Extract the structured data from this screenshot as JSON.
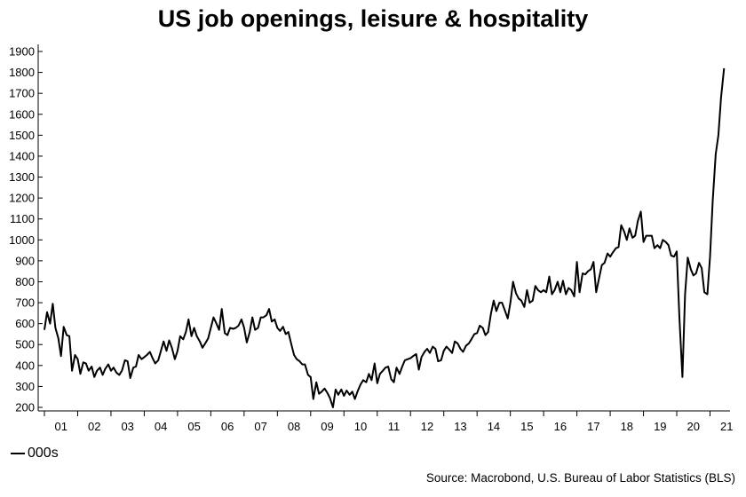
{
  "chart_data": {
    "type": "line",
    "title": "US job openings, leisure & hospitality",
    "ylim": [
      200,
      1900
    ],
    "yticks": [
      200,
      300,
      400,
      500,
      600,
      700,
      800,
      900,
      1000,
      1100,
      1200,
      1300,
      1400,
      1500,
      1600,
      1700,
      1800,
      1900
    ],
    "xlim": [
      2001,
      2021.6
    ],
    "xtick_labels": [
      "01",
      "02",
      "03",
      "04",
      "05",
      "06",
      "07",
      "08",
      "09",
      "10",
      "11",
      "12",
      "13",
      "14",
      "15",
      "16",
      "17",
      "18",
      "19",
      "20",
      "21"
    ],
    "grid": false,
    "legend": {
      "position": "bottom-left",
      "entries": [
        "000s"
      ]
    },
    "source": "Source: Macrobond, U.S. Bureau of Labor Statistics (BLS)",
    "series": [
      {
        "name": "000s",
        "color": "#000000",
        "points": [
          [
            2001.0,
            570
          ],
          [
            2001.08,
            655
          ],
          [
            2001.17,
            600
          ],
          [
            2001.25,
            695
          ],
          [
            2001.33,
            580
          ],
          [
            2001.42,
            530
          ],
          [
            2001.5,
            445
          ],
          [
            2001.58,
            585
          ],
          [
            2001.67,
            545
          ],
          [
            2001.75,
            540
          ],
          [
            2001.83,
            375
          ],
          [
            2001.92,
            450
          ],
          [
            2002.0,
            430
          ],
          [
            2002.08,
            360
          ],
          [
            2002.17,
            415
          ],
          [
            2002.25,
            410
          ],
          [
            2002.33,
            375
          ],
          [
            2002.42,
            395
          ],
          [
            2002.5,
            345
          ],
          [
            2002.58,
            375
          ],
          [
            2002.67,
            390
          ],
          [
            2002.75,
            355
          ],
          [
            2002.83,
            385
          ],
          [
            2002.92,
            405
          ],
          [
            2003.0,
            375
          ],
          [
            2003.08,
            390
          ],
          [
            2003.17,
            365
          ],
          [
            2003.25,
            355
          ],
          [
            2003.33,
            375
          ],
          [
            2003.42,
            425
          ],
          [
            2003.5,
            420
          ],
          [
            2003.58,
            340
          ],
          [
            2003.67,
            390
          ],
          [
            2003.75,
            395
          ],
          [
            2003.83,
            450
          ],
          [
            2003.92,
            430
          ],
          [
            2004.0,
            440
          ],
          [
            2004.08,
            450
          ],
          [
            2004.17,
            465
          ],
          [
            2004.25,
            435
          ],
          [
            2004.33,
            410
          ],
          [
            2004.42,
            425
          ],
          [
            2004.5,
            470
          ],
          [
            2004.58,
            515
          ],
          [
            2004.67,
            470
          ],
          [
            2004.75,
            520
          ],
          [
            2004.83,
            485
          ],
          [
            2004.92,
            430
          ],
          [
            2005.0,
            470
          ],
          [
            2005.08,
            540
          ],
          [
            2005.17,
            525
          ],
          [
            2005.25,
            560
          ],
          [
            2005.33,
            620
          ],
          [
            2005.42,
            540
          ],
          [
            2005.5,
            580
          ],
          [
            2005.58,
            540
          ],
          [
            2005.67,
            515
          ],
          [
            2005.75,
            485
          ],
          [
            2005.83,
            505
          ],
          [
            2005.92,
            530
          ],
          [
            2006.0,
            580
          ],
          [
            2006.08,
            630
          ],
          [
            2006.17,
            600
          ],
          [
            2006.25,
            570
          ],
          [
            2006.33,
            670
          ],
          [
            2006.42,
            555
          ],
          [
            2006.5,
            545
          ],
          [
            2006.58,
            580
          ],
          [
            2006.67,
            575
          ],
          [
            2006.75,
            580
          ],
          [
            2006.83,
            590
          ],
          [
            2006.92,
            620
          ],
          [
            2007.0,
            580
          ],
          [
            2007.08,
            510
          ],
          [
            2007.17,
            560
          ],
          [
            2007.25,
            630
          ],
          [
            2007.33,
            570
          ],
          [
            2007.42,
            580
          ],
          [
            2007.5,
            630
          ],
          [
            2007.58,
            630
          ],
          [
            2007.67,
            640
          ],
          [
            2007.75,
            670
          ],
          [
            2007.83,
            610
          ],
          [
            2007.92,
            620
          ],
          [
            2008.0,
            580
          ],
          [
            2008.08,
            565
          ],
          [
            2008.17,
            585
          ],
          [
            2008.25,
            550
          ],
          [
            2008.33,
            560
          ],
          [
            2008.42,
            500
          ],
          [
            2008.5,
            450
          ],
          [
            2008.58,
            430
          ],
          [
            2008.67,
            420
          ],
          [
            2008.75,
            405
          ],
          [
            2008.83,
            405
          ],
          [
            2008.92,
            355
          ],
          [
            2009.0,
            345
          ],
          [
            2009.08,
            240
          ],
          [
            2009.17,
            320
          ],
          [
            2009.25,
            265
          ],
          [
            2009.33,
            275
          ],
          [
            2009.42,
            290
          ],
          [
            2009.5,
            270
          ],
          [
            2009.58,
            245
          ],
          [
            2009.67,
            200
          ],
          [
            2009.75,
            285
          ],
          [
            2009.83,
            260
          ],
          [
            2009.92,
            285
          ],
          [
            2010.0,
            255
          ],
          [
            2010.08,
            280
          ],
          [
            2010.17,
            260
          ],
          [
            2010.25,
            275
          ],
          [
            2010.33,
            240
          ],
          [
            2010.42,
            280
          ],
          [
            2010.5,
            310
          ],
          [
            2010.58,
            330
          ],
          [
            2010.67,
            320
          ],
          [
            2010.75,
            360
          ],
          [
            2010.83,
            330
          ],
          [
            2010.92,
            410
          ],
          [
            2011.0,
            315
          ],
          [
            2011.08,
            360
          ],
          [
            2011.17,
            375
          ],
          [
            2011.25,
            390
          ],
          [
            2011.33,
            395
          ],
          [
            2011.42,
            335
          ],
          [
            2011.5,
            320
          ],
          [
            2011.58,
            390
          ],
          [
            2011.67,
            360
          ],
          [
            2011.75,
            395
          ],
          [
            2011.83,
            425
          ],
          [
            2011.92,
            430
          ],
          [
            2012.0,
            435
          ],
          [
            2012.08,
            445
          ],
          [
            2012.17,
            455
          ],
          [
            2012.25,
            380
          ],
          [
            2012.33,
            440
          ],
          [
            2012.42,
            465
          ],
          [
            2012.5,
            480
          ],
          [
            2012.58,
            460
          ],
          [
            2012.67,
            490
          ],
          [
            2012.75,
            480
          ],
          [
            2012.83,
            420
          ],
          [
            2012.92,
            425
          ],
          [
            2013.0,
            470
          ],
          [
            2013.08,
            490
          ],
          [
            2013.17,
            475
          ],
          [
            2013.25,
            460
          ],
          [
            2013.33,
            515
          ],
          [
            2013.42,
            505
          ],
          [
            2013.5,
            480
          ],
          [
            2013.58,
            465
          ],
          [
            2013.67,
            495
          ],
          [
            2013.75,
            505
          ],
          [
            2013.83,
            525
          ],
          [
            2013.92,
            550
          ],
          [
            2014.0,
            555
          ],
          [
            2014.08,
            590
          ],
          [
            2014.17,
            580
          ],
          [
            2014.25,
            545
          ],
          [
            2014.33,
            560
          ],
          [
            2014.42,
            650
          ],
          [
            2014.5,
            710
          ],
          [
            2014.58,
            660
          ],
          [
            2014.67,
            700
          ],
          [
            2014.75,
            700
          ],
          [
            2014.83,
            665
          ],
          [
            2014.92,
            625
          ],
          [
            2015.0,
            700
          ],
          [
            2015.08,
            800
          ],
          [
            2015.17,
            745
          ],
          [
            2015.25,
            720
          ],
          [
            2015.33,
            710
          ],
          [
            2015.42,
            680
          ],
          [
            2015.5,
            760
          ],
          [
            2015.58,
            700
          ],
          [
            2015.67,
            710
          ],
          [
            2015.75,
            780
          ],
          [
            2015.83,
            760
          ],
          [
            2015.92,
            750
          ],
          [
            2016.0,
            760
          ],
          [
            2016.08,
            750
          ],
          [
            2016.17,
            825
          ],
          [
            2016.25,
            740
          ],
          [
            2016.33,
            760
          ],
          [
            2016.42,
            800
          ],
          [
            2016.5,
            750
          ],
          [
            2016.58,
            805
          ],
          [
            2016.67,
            740
          ],
          [
            2016.75,
            770
          ],
          [
            2016.83,
            760
          ],
          [
            2016.92,
            730
          ],
          [
            2017.0,
            895
          ],
          [
            2017.08,
            750
          ],
          [
            2017.17,
            840
          ],
          [
            2017.25,
            835
          ],
          [
            2017.33,
            850
          ],
          [
            2017.42,
            860
          ],
          [
            2017.5,
            895
          ],
          [
            2017.58,
            750
          ],
          [
            2017.67,
            820
          ],
          [
            2017.75,
            880
          ],
          [
            2017.83,
            890
          ],
          [
            2017.92,
            935
          ],
          [
            2018.0,
            920
          ],
          [
            2018.08,
            940
          ],
          [
            2018.17,
            960
          ],
          [
            2018.25,
            965
          ],
          [
            2018.33,
            1070
          ],
          [
            2018.42,
            1040
          ],
          [
            2018.5,
            1000
          ],
          [
            2018.58,
            1055
          ],
          [
            2018.67,
            1010
          ],
          [
            2018.75,
            1020
          ],
          [
            2018.83,
            1090
          ],
          [
            2018.92,
            1135
          ],
          [
            2019.0,
            990
          ],
          [
            2019.08,
            1020
          ],
          [
            2019.17,
            1020
          ],
          [
            2019.25,
            1020
          ],
          [
            2019.33,
            960
          ],
          [
            2019.42,
            975
          ],
          [
            2019.5,
            960
          ],
          [
            2019.58,
            1000
          ],
          [
            2019.67,
            990
          ],
          [
            2019.75,
            975
          ],
          [
            2019.83,
            925
          ],
          [
            2019.92,
            920
          ],
          [
            2020.0,
            945
          ],
          [
            2020.08,
            630
          ],
          [
            2020.17,
            345
          ],
          [
            2020.25,
            740
          ],
          [
            2020.33,
            915
          ],
          [
            2020.42,
            860
          ],
          [
            2020.5,
            830
          ],
          [
            2020.58,
            840
          ],
          [
            2020.67,
            890
          ],
          [
            2020.75,
            865
          ],
          [
            2020.83,
            750
          ],
          [
            2020.92,
            740
          ],
          [
            2021.0,
            920
          ],
          [
            2021.08,
            1185
          ],
          [
            2021.17,
            1410
          ],
          [
            2021.25,
            1500
          ],
          [
            2021.33,
            1680
          ],
          [
            2021.42,
            1820
          ]
        ]
      }
    ]
  }
}
